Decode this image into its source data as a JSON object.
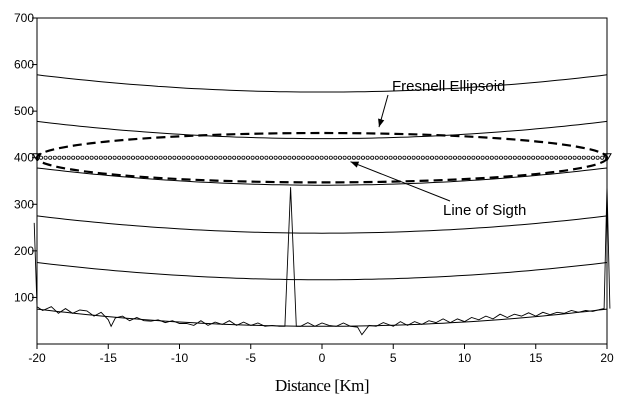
{
  "chart_data": {
    "type": "line",
    "title": "",
    "xlabel": "Distance [Km]",
    "ylabel": "",
    "xlim": [
      -20,
      20
    ],
    "ylim": [
      0,
      700
    ],
    "xticks": [
      -20,
      -15,
      -10,
      -5,
      0,
      5,
      10,
      15,
      20
    ],
    "yticks": [
      100,
      200,
      300,
      400,
      500,
      600,
      700
    ],
    "grid": false,
    "annotations": [
      {
        "text": "Fresnell Ellipsoid",
        "points_to": [
          4,
          455
        ]
      },
      {
        "text": "Line of Sigth",
        "points_to": [
          2,
          400
        ]
      }
    ],
    "curves": {
      "ground_baseline": {
        "x": [
          -20,
          0,
          20
        ],
        "y": [
          75,
          38,
          75
        ]
      },
      "parallel_curves": [
        {
          "x": [
            -20,
            0,
            20
          ],
          "y": [
            175,
            138,
            175
          ]
        },
        {
          "x": [
            -20,
            0,
            20
          ],
          "y": [
            275,
            238,
            275
          ]
        },
        {
          "x": [
            -20,
            0,
            20
          ],
          "y": [
            378,
            341,
            378
          ]
        },
        {
          "x": [
            -20,
            0,
            20
          ],
          "y": [
            478,
            441,
            478
          ]
        },
        {
          "x": [
            -20,
            0,
            20
          ],
          "y": [
            578,
            541,
            578
          ]
        }
      ]
    },
    "terrain": {
      "x": [
        -20.2,
        -20,
        -19.6,
        -19,
        -18.5,
        -18,
        -17.5,
        -17,
        -16.5,
        -16,
        -15.5,
        -15,
        -14.8,
        -14.5,
        -14,
        -13.5,
        -13,
        -12.5,
        -12,
        -11.5,
        -11,
        -10.5,
        -10,
        -9.5,
        -9,
        -8.5,
        -8,
        -7.5,
        -7,
        -6.5,
        -6,
        -5.5,
        -5,
        -4.5,
        -4,
        -3.5,
        -3,
        -2.6,
        -2.2,
        -1.8,
        -1.5,
        -1,
        -0.5,
        0,
        0.5,
        1,
        1.5,
        2,
        2.5,
        2.8,
        3.3,
        3.8,
        4.3,
        5,
        5.5,
        6,
        6.5,
        7,
        7.5,
        8,
        8.5,
        9,
        9.5,
        10,
        10.5,
        11,
        11.5,
        12,
        12.5,
        13,
        13.5,
        14,
        14.5,
        15,
        15.5,
        16,
        16.5,
        17,
        17.5,
        18,
        18.5,
        19,
        19.5,
        19.8,
        20,
        20.2
      ],
      "y": [
        260,
        80,
        72,
        80,
        66,
        76,
        66,
        73,
        71,
        60,
        68,
        52,
        38,
        56,
        60,
        50,
        57,
        50,
        49,
        52,
        46,
        50,
        44,
        44,
        40,
        50,
        40,
        47,
        42,
        50,
        40,
        47,
        40,
        45,
        38,
        40,
        38,
        38,
        337,
        38,
        38,
        46,
        38,
        45,
        40,
        38,
        45,
        38,
        36,
        20,
        40,
        38,
        46,
        38,
        48,
        40,
        48,
        42,
        50,
        46,
        54,
        46,
        54,
        48,
        57,
        52,
        60,
        54,
        64,
        57,
        64,
        60,
        67,
        60,
        68,
        63,
        68,
        66,
        72,
        68,
        72,
        70,
        74,
        76,
        340,
        76
      ]
    },
    "fresnel_ellipsoid": {
      "x_range": [
        -20,
        20
      ],
      "center_y": 400,
      "semi_height": 53
    },
    "line_of_sight": {
      "x": [
        -20,
        20
      ],
      "y": [
        400,
        400
      ]
    },
    "endpoints": [
      {
        "x": -20,
        "y": 400
      },
      {
        "x": 20,
        "y": 400
      }
    ]
  }
}
